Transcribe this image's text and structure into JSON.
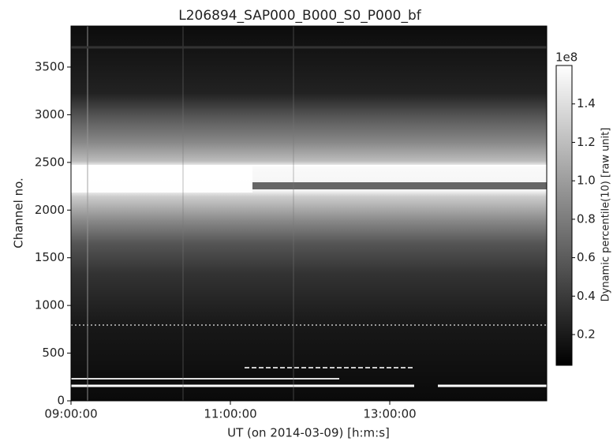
{
  "chart_data": {
    "type": "heatmap",
    "title": "L206894_SAP000_B000_S0_P000_bf",
    "x_label": "UT (on 2014-03-09) [h:m:s]",
    "y_label": "Channel no.",
    "xlim": [
      9,
      14.97
    ],
    "xticks": [
      {
        "value": 9,
        "label": "09:00:00"
      },
      {
        "value": 11,
        "label": "11:00:00"
      },
      {
        "value": 13,
        "label": "13:00:00"
      }
    ],
    "ylim": [
      0,
      3930
    ],
    "yticks": [
      0,
      500,
      1000,
      1500,
      2000,
      2500,
      3000,
      3500
    ],
    "colorbar": {
      "label": "Dynamic percentile(10) [raw unit]",
      "offset_label": "1e8",
      "lim": [
        0.04,
        1.6
      ],
      "ticks": [
        0.2,
        0.4,
        0.6,
        0.8,
        {
          "value": 1.0,
          "label": "1.0"
        },
        1.2,
        1.4
      ],
      "colormap": "gray"
    }
  }
}
